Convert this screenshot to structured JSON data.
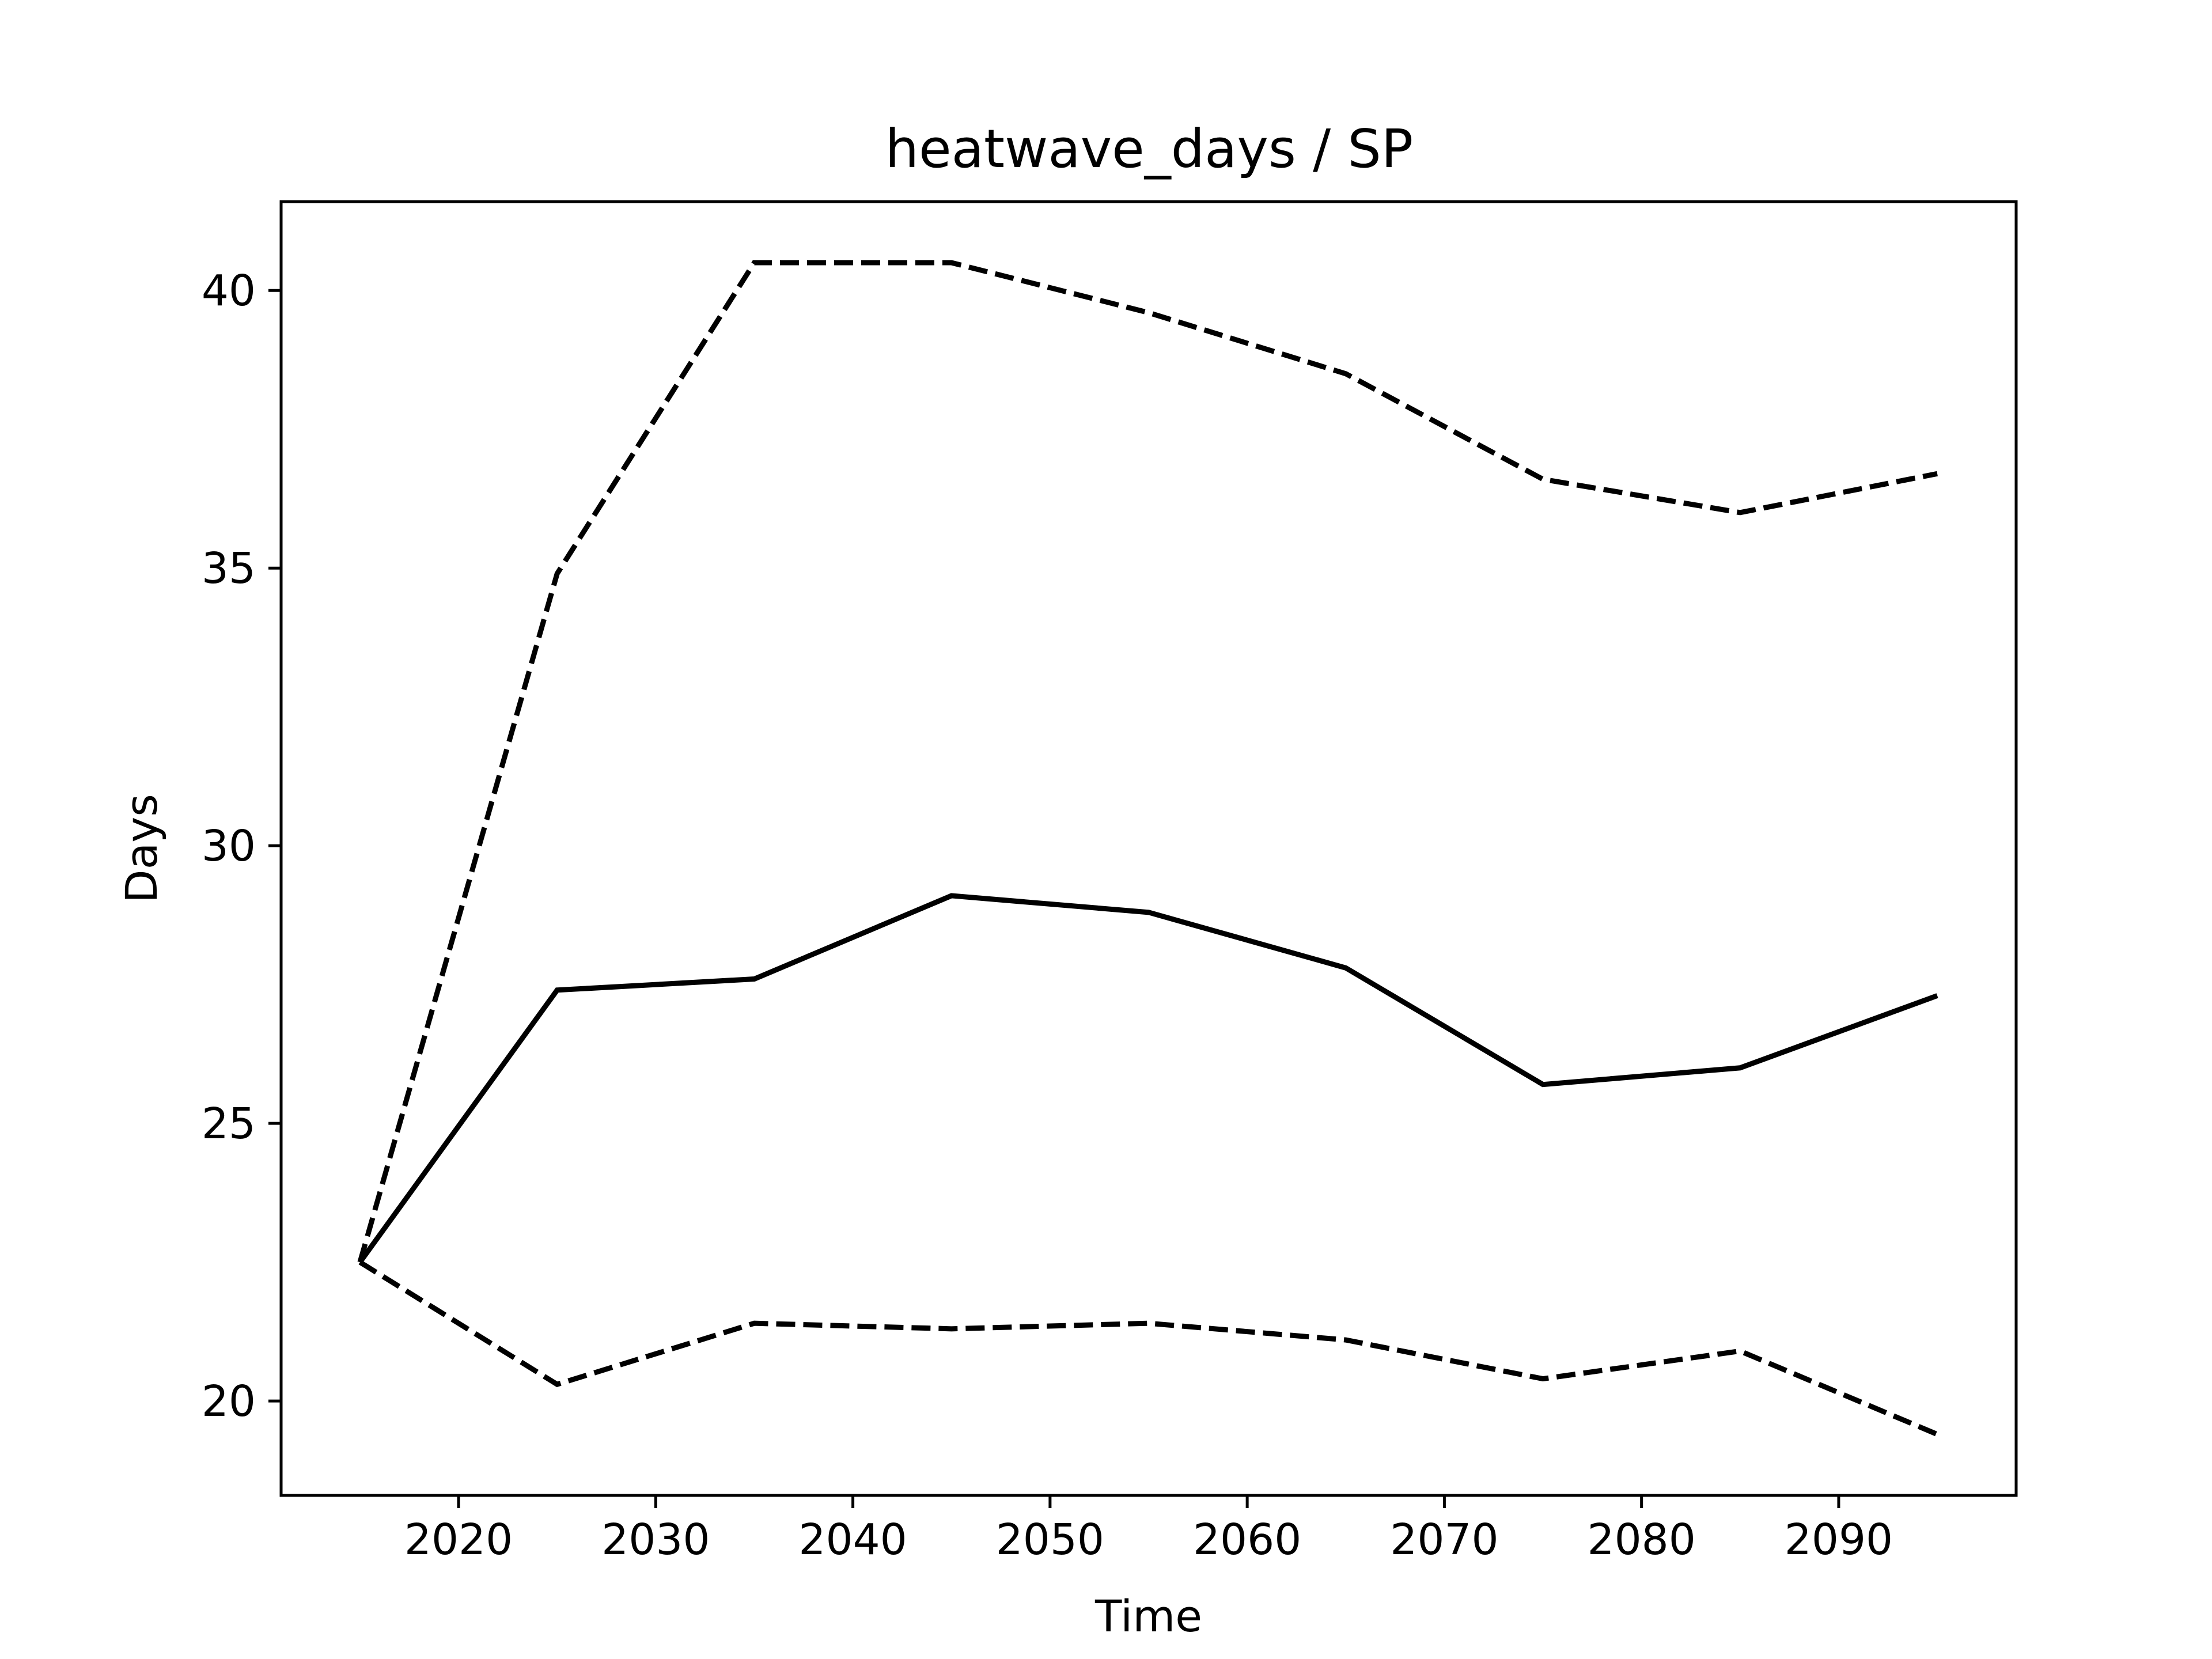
{
  "chart_data": {
    "type": "line",
    "title": "heatwave_days / SP",
    "xlabel": "Time",
    "ylabel": "Days",
    "xlim": [
      2011,
      2099
    ],
    "ylim": [
      18.3,
      41.6
    ],
    "xticks": [
      2020,
      2030,
      2040,
      2050,
      2060,
      2070,
      2080,
      2090
    ],
    "yticks": [
      20,
      25,
      30,
      35,
      40
    ],
    "grid": false,
    "x": [
      2015,
      2025,
      2035,
      2045,
      2055,
      2065,
      2075,
      2085,
      2095
    ],
    "series": [
      {
        "values": [
          22.5,
          27.4,
          27.6,
          29.1,
          28.8,
          27.8,
          25.7,
          26.0,
          27.3
        ],
        "style": "solid",
        "color": "#000000"
      },
      {
        "values": [
          22.5,
          34.9,
          40.5,
          40.5,
          39.6,
          38.5,
          36.6,
          36.0,
          36.7
        ],
        "style": "dashed",
        "color": "#000000"
      },
      {
        "values": [
          22.5,
          20.3,
          21.4,
          21.3,
          21.4,
          21.1,
          20.4,
          20.9,
          19.4
        ],
        "style": "dashed",
        "color": "#000000"
      }
    ]
  }
}
